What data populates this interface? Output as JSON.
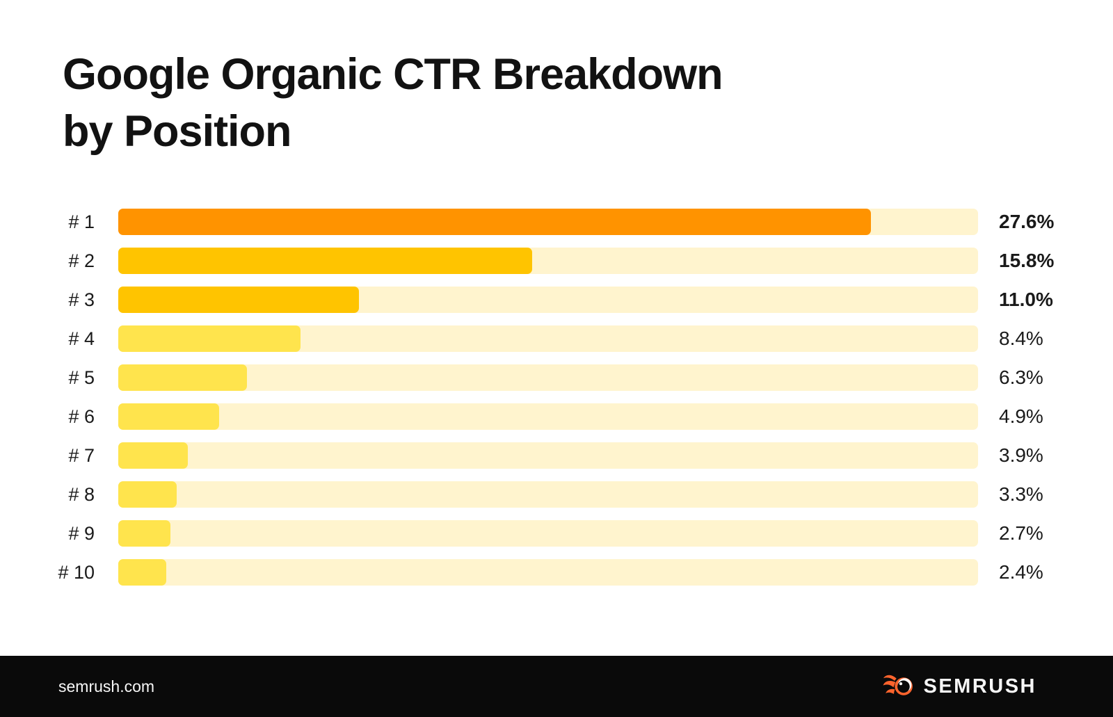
{
  "title_line1": "Google Organic CTR Breakdown",
  "title_line2": "by Position",
  "chart_data": {
    "type": "bar",
    "orientation": "horizontal",
    "title": "Google Organic CTR Breakdown by Position",
    "categories": [
      "# 1",
      "# 2",
      "# 3",
      "# 4",
      "# 5",
      "# 6",
      "# 7",
      "# 8",
      "# 9",
      "# 10"
    ],
    "values": [
      27.6,
      15.8,
      11.0,
      8.4,
      6.3,
      4.9,
      3.9,
      3.3,
      2.7,
      2.4
    ],
    "value_labels": [
      "27.6%",
      "15.8%",
      "11.0%",
      "8.4%",
      "6.3%",
      "4.9%",
      "3.9%",
      "3.3%",
      "2.7%",
      "2.4%"
    ],
    "unit": "% click-through rate",
    "bar_colors": [
      "#FF9300",
      "#FFC400",
      "#FFC400",
      "#FFE44D",
      "#FFE44D",
      "#FFE44D",
      "#FFE44D",
      "#FFE44D",
      "#FFE44D",
      "#FFE44D"
    ],
    "track_color": "#FFF4CE",
    "fill_pct_of_track": [
      87.5,
      48.1,
      28.0,
      21.2,
      15.0,
      11.7,
      8.1,
      6.8,
      6.1,
      5.6
    ],
    "emphasized_value_rows": [
      0,
      1,
      2
    ],
    "legend": "none",
    "grid": false,
    "value_label_position": "right-of-track"
  },
  "footer": {
    "site_label": "semrush.com",
    "brand_name": "SEMRUSH"
  },
  "colors": {
    "bar_rank1": "#FF9300",
    "bar_rank2_3": "#FFC400",
    "bar_rank4_10": "#FFE44D",
    "bar_track": "#FFF4CE",
    "text": "#121212",
    "footer_bg": "#0A0A0A",
    "logo_orange": "#FF642D"
  }
}
